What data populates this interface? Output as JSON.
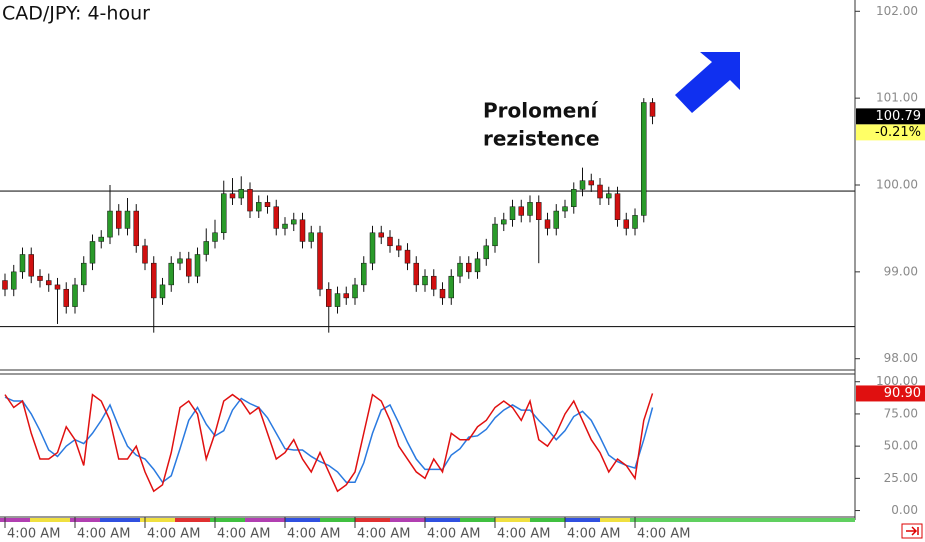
{
  "chart_data": [
    {
      "type": "candlestick",
      "title": "CAD/JPY: 4-hour",
      "annotation": [
        "Prolomení",
        "rezistence"
      ],
      "up_color": "#2a9a2a",
      "down_color": "#d01010",
      "opens": [
        98.9,
        98.8,
        99.0,
        99.2,
        98.95,
        98.9,
        98.85,
        98.8,
        98.6,
        98.85,
        99.1,
        99.35,
        99.4,
        99.7,
        99.5,
        99.7,
        99.3,
        99.1,
        98.7,
        98.85,
        99.1,
        99.15,
        98.95,
        99.2,
        99.35,
        99.45,
        99.9,
        99.85,
        99.95,
        99.7,
        99.8,
        99.75,
        99.5,
        99.55,
        99.6,
        99.35,
        99.45,
        98.8,
        98.6,
        98.75,
        98.7,
        98.85,
        99.1,
        99.45,
        99.4,
        99.3,
        99.25,
        99.1,
        98.85,
        98.95,
        98.8,
        98.7,
        98.95,
        99.1,
        99.0,
        99.15,
        99.3,
        99.55,
        99.6,
        99.75,
        99.65,
        99.8,
        99.6,
        99.5,
        99.7,
        99.75,
        99.95,
        100.05,
        100.0,
        99.85,
        99.9,
        99.6,
        99.5,
        99.65,
        100.95
      ],
      "highs": [
        98.98,
        99.08,
        99.28,
        99.28,
        99.03,
        98.98,
        98.93,
        98.88,
        98.93,
        99.18,
        99.43,
        99.48,
        100.0,
        99.78,
        99.85,
        99.78,
        99.38,
        99.18,
        98.93,
        99.18,
        99.23,
        99.23,
        99.28,
        99.5,
        99.6,
        100.05,
        100.08,
        100.1,
        100.03,
        99.88,
        99.88,
        99.83,
        99.63,
        99.68,
        99.68,
        99.53,
        99.53,
        98.88,
        98.83,
        98.83,
        98.93,
        99.18,
        99.53,
        99.53,
        99.48,
        99.38,
        99.33,
        99.18,
        99.03,
        99.03,
        98.88,
        99.03,
        99.18,
        99.18,
        99.23,
        99.38,
        99.63,
        99.68,
        99.83,
        99.83,
        99.88,
        99.88,
        99.68,
        99.78,
        99.83,
        100.03,
        100.2,
        100.13,
        100.08,
        99.98,
        99.98,
        99.68,
        99.73,
        101.0,
        101.0
      ],
      "lows": [
        98.72,
        98.72,
        98.92,
        98.87,
        98.82,
        98.77,
        98.4,
        98.52,
        98.52,
        98.77,
        99.02,
        99.27,
        99.32,
        99.42,
        99.42,
        99.22,
        99.02,
        98.3,
        98.62,
        98.77,
        99.02,
        98.87,
        98.87,
        99.12,
        99.27,
        99.37,
        99.77,
        99.77,
        99.62,
        99.62,
        99.67,
        99.42,
        99.42,
        99.47,
        99.27,
        99.27,
        98.72,
        98.3,
        98.52,
        98.62,
        98.62,
        98.77,
        99.02,
        99.32,
        99.22,
        99.17,
        99.02,
        98.77,
        98.77,
        98.72,
        98.62,
        98.62,
        98.87,
        98.92,
        98.92,
        99.07,
        99.22,
        99.47,
        99.52,
        99.57,
        99.57,
        99.1,
        99.42,
        99.42,
        99.62,
        99.67,
        99.87,
        99.92,
        99.77,
        99.77,
        99.52,
        99.42,
        99.42,
        99.57,
        100.7
      ],
      "closes": [
        98.8,
        99.0,
        99.2,
        98.95,
        98.9,
        98.85,
        98.8,
        98.6,
        98.85,
        99.1,
        99.35,
        99.4,
        99.7,
        99.5,
        99.7,
        99.3,
        99.1,
        98.7,
        98.85,
        99.1,
        99.15,
        98.95,
        99.2,
        99.35,
        99.45,
        99.9,
        99.85,
        99.95,
        99.7,
        99.8,
        99.75,
        99.5,
        99.55,
        99.6,
        99.35,
        99.45,
        98.8,
        98.6,
        98.75,
        98.7,
        98.85,
        99.1,
        99.45,
        99.4,
        99.3,
        99.25,
        99.1,
        98.85,
        98.95,
        98.8,
        98.7,
        98.95,
        99.1,
        99.0,
        99.15,
        99.3,
        99.55,
        99.6,
        99.75,
        99.65,
        99.8,
        99.6,
        99.5,
        99.7,
        99.75,
        99.95,
        100.05,
        100.0,
        99.85,
        99.9,
        99.6,
        99.5,
        99.65,
        100.95,
        100.79
      ],
      "xlim": [
        -0.57,
        97.14
      ],
      "ylim": [
        97.87,
        102.13
      ],
      "yticks": [
        {
          "value": 98,
          "label": "98.00"
        },
        {
          "value": 99,
          "label": "99.00"
        },
        {
          "value": 100,
          "label": "100.00"
        },
        {
          "value": 101,
          "label": "101.00"
        },
        {
          "value": 102,
          "label": "102.00"
        }
      ],
      "hlines": [
        99.93,
        98.37
      ],
      "last_price": 100.79,
      "change_label": "-0.21%"
    },
    {
      "type": "line",
      "series": [
        {
          "color": "#e01010",
          "values": [
            90,
            80,
            85,
            60,
            40,
            40,
            45,
            65,
            55,
            35,
            90,
            85,
            70,
            40,
            40,
            50,
            30,
            15,
            20,
            45,
            80,
            85,
            75,
            40,
            60,
            85,
            90,
            85,
            75,
            80,
            60,
            40,
            45,
            55,
            40,
            30,
            45,
            30,
            15,
            20,
            30,
            60,
            90,
            85,
            70,
            50,
            40,
            30,
            25,
            40,
            30,
            60,
            55,
            55,
            65,
            70,
            80,
            85,
            80,
            70,
            85,
            55,
            50,
            60,
            75,
            85,
            70,
            55,
            45,
            30,
            40,
            35,
            25,
            70,
            90.9
          ],
          "last_label": "90.90"
        },
        {
          "color": "#2a7ae0",
          "values": [
            88,
            85,
            85,
            75,
            62,
            47,
            42,
            50,
            55,
            52,
            60,
            70,
            82,
            65,
            50,
            43,
            40,
            32,
            22,
            27,
            48,
            70,
            80,
            67,
            58,
            62,
            78,
            87,
            83,
            80,
            72,
            60,
            48,
            47,
            47,
            42,
            38,
            35,
            30,
            22,
            22,
            37,
            60,
            78,
            82,
            68,
            53,
            40,
            32,
            32,
            32,
            43,
            48,
            57,
            58,
            63,
            72,
            78,
            82,
            78,
            78,
            70,
            63,
            55,
            62,
            73,
            77,
            70,
            57,
            43,
            38,
            35,
            33,
            55,
            80
          ]
        }
      ],
      "xlim": [
        -0.57,
        97.14
      ],
      "xticks": [
        {
          "value": 0,
          "label": "4:00 AM"
        },
        {
          "value": 8,
          "label": "4:00 AM"
        },
        {
          "value": 16,
          "label": "4:00 AM"
        },
        {
          "value": 24,
          "label": "4:00 AM"
        },
        {
          "value": 32,
          "label": "4:00 AM"
        },
        {
          "value": 40,
          "label": "4:00 AM"
        },
        {
          "value": 48,
          "label": "4:00 AM"
        },
        {
          "value": 56,
          "label": "4:00 AM"
        },
        {
          "value": 64,
          "label": "4:00 AM"
        },
        {
          "value": 72,
          "label": "4:00 AM"
        }
      ],
      "ylim": [
        -5,
        106
      ],
      "yticks": [
        {
          "value": 0,
          "label": "0.00"
        },
        {
          "value": 25,
          "label": "25.00"
        },
        {
          "value": 50,
          "label": "50.00"
        },
        {
          "value": 75,
          "label": "75.00"
        },
        {
          "value": 100,
          "label": "100.00"
        }
      ]
    }
  ]
}
